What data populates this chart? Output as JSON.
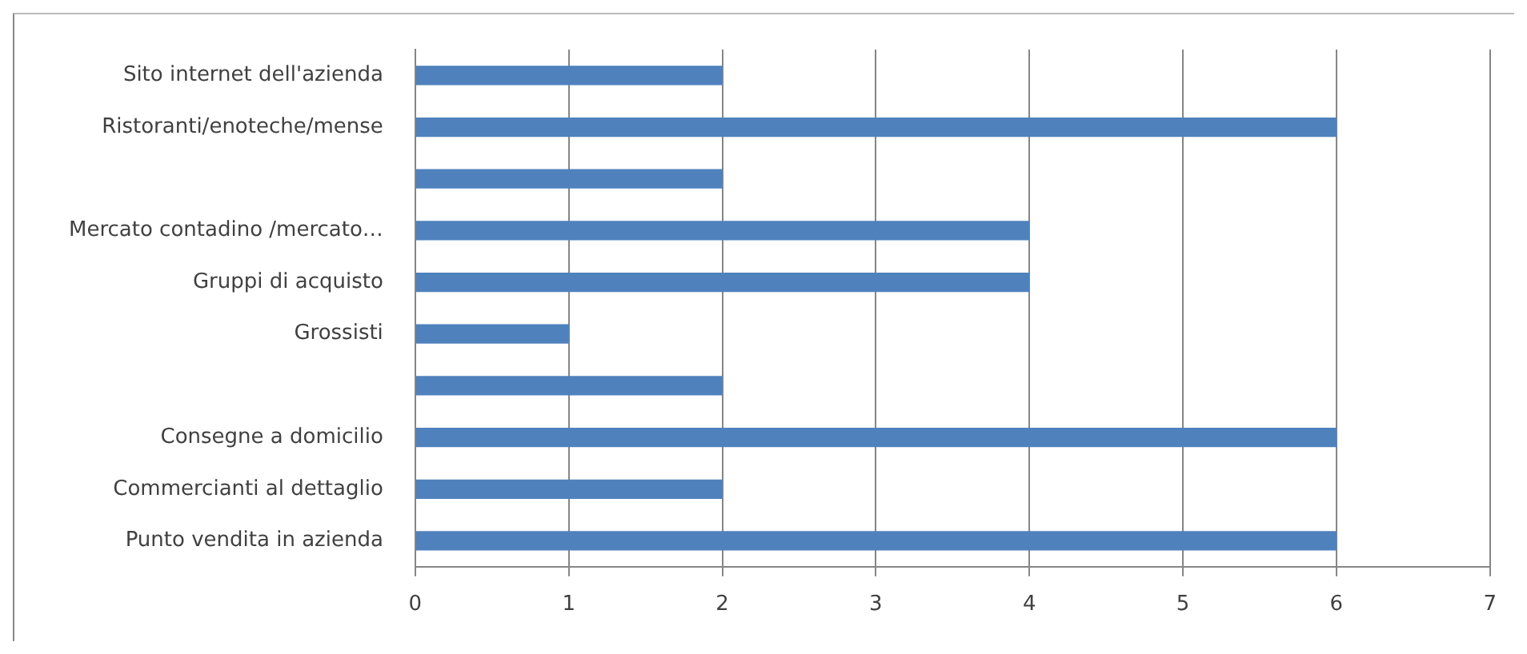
{
  "chart_data": {
    "type": "bar",
    "orientation": "horizontal",
    "categories": [
      "Sito internet dell'azienda",
      "Ristoranti/enoteche/mense",
      null,
      "Mercato contadino /mercato…",
      "Gruppi di acquisto",
      "Grossisti",
      null,
      "Consegne a domicilio",
      "Commercianti al dettaglio",
      "Punto vendita in azienda"
    ],
    "values": [
      2,
      6,
      2,
      4,
      4,
      1,
      2,
      6,
      2,
      6
    ],
    "color": "#4f81bd",
    "xlim": [
      0,
      7
    ],
    "xticks": [
      0,
      1,
      2,
      3,
      4,
      5,
      6,
      7
    ],
    "grid": "x",
    "legend": false
  }
}
